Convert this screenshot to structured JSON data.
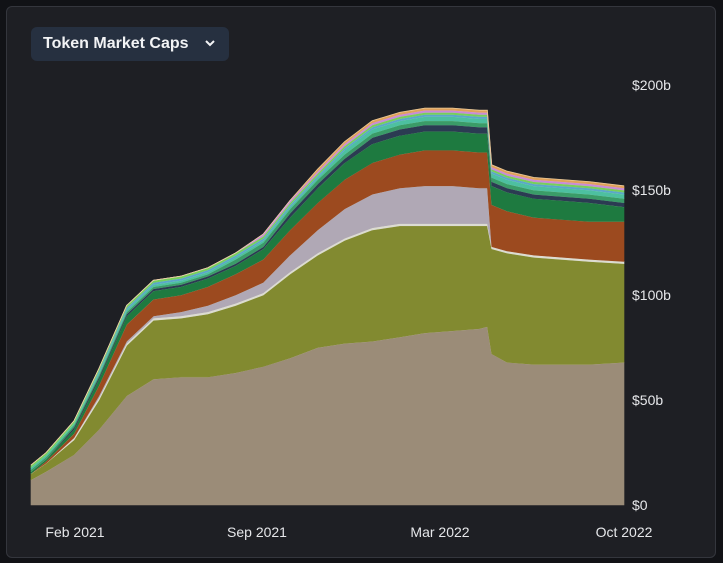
{
  "selector": {
    "label": "Token Market Caps",
    "icon": "chevron-down-icon"
  },
  "chart_data": {
    "type": "area",
    "stacked": true,
    "x": [
      "2020-12-15",
      "2021-01-01",
      "2021-02-01",
      "2021-03-01",
      "2021-04-01",
      "2021-05-01",
      "2021-06-01",
      "2021-07-01",
      "2021-08-01",
      "2021-09-01",
      "2021-10-01",
      "2021-11-01",
      "2021-12-01",
      "2022-01-01",
      "2022-02-01",
      "2022-03-01",
      "2022-04-01",
      "2022-05-01",
      "2022-05-10",
      "2022-05-15",
      "2022-06-01",
      "2022-07-01",
      "2022-08-01",
      "2022-09-01",
      "2022-10-10"
    ],
    "x_ticks": [
      "Feb 2021",
      "Sep 2021",
      "Mar 2022",
      "Oct 2022"
    ],
    "y_ticks": [
      "$0",
      "$50b",
      "$100b",
      "$150b",
      "$200b"
    ],
    "ylim": [
      0,
      200
    ],
    "y_unit": "b",
    "grid": false,
    "legend": "none",
    "series": [
      {
        "color": "#9b8c78",
        "values": [
          12,
          16,
          24,
          36,
          52,
          60,
          61,
          61,
          63,
          66,
          70,
          75,
          77,
          78,
          80,
          82,
          83,
          84,
          85,
          72,
          68,
          67,
          67,
          67,
          68
        ]
      },
      {
        "color": "#828a30",
        "values": [
          3,
          4,
          7,
          14,
          24,
          28,
          28,
          30,
          32,
          34,
          40,
          44,
          49,
          53,
          53,
          51,
          50,
          49,
          48,
          50,
          52,
          51,
          50,
          49,
          47
        ]
      },
      {
        "color": "#dcdcd2",
        "values": [
          0,
          0,
          1,
          1,
          1,
          1,
          1,
          1,
          1,
          1,
          1,
          1,
          1,
          1,
          1,
          1,
          1,
          1,
          1,
          1,
          1,
          1,
          1,
          1,
          1
        ]
      },
      {
        "color": "#b0a8b5",
        "values": [
          0,
          0,
          0,
          1,
          1,
          1,
          2,
          3,
          4,
          5,
          8,
          11,
          14,
          16,
          17,
          18,
          18,
          17,
          17,
          0,
          0,
          0,
          0,
          0,
          0
        ]
      },
      {
        "color": "#9c4a1f",
        "values": [
          0,
          1,
          2,
          5,
          8,
          8,
          8,
          9,
          10,
          11,
          12,
          13,
          14,
          15,
          16,
          17,
          17,
          17,
          17,
          20,
          19,
          18,
          18,
          18,
          19
        ]
      },
      {
        "color": "#1e7a40",
        "values": [
          1,
          1,
          2,
          3,
          4,
          4,
          4,
          4,
          4,
          5,
          6,
          7,
          8,
          9,
          9,
          9,
          9,
          9,
          9,
          9,
          9,
          9,
          9,
          9,
          7
        ]
      },
      {
        "color": "#2b3b52",
        "values": [
          0,
          0,
          1,
          1,
          1,
          1,
          1,
          1,
          1,
          1,
          2,
          2,
          2,
          3,
          3,
          3,
          3,
          3,
          3,
          2,
          2,
          2,
          2,
          2,
          2
        ]
      },
      {
        "color": "#3a9c68",
        "values": [
          1,
          1,
          1,
          1,
          1,
          1,
          1,
          1,
          2,
          2,
          2,
          2,
          2,
          2,
          2,
          2,
          2,
          2,
          2,
          2,
          2,
          2,
          2,
          2,
          2
        ]
      },
      {
        "color": "#4dc0a0",
        "values": [
          1,
          1,
          1,
          1,
          1,
          1,
          1,
          1,
          1,
          1,
          1,
          1,
          2,
          2,
          2,
          2,
          2,
          2,
          2,
          2,
          2,
          2,
          2,
          2,
          2
        ]
      },
      {
        "color": "#5ba7c9",
        "values": [
          0,
          0,
          0,
          1,
          1,
          1,
          1,
          1,
          1,
          1,
          1,
          1,
          1,
          1,
          1,
          1,
          1,
          1,
          1,
          1,
          1,
          1,
          1,
          1,
          1
        ]
      },
      {
        "color": "#76cf5a",
        "values": [
          1,
          1,
          1,
          1,
          1,
          1,
          1,
          1,
          1,
          1,
          1,
          1,
          1,
          1,
          1,
          1,
          1,
          1,
          1,
          1,
          1,
          1,
          1,
          1,
          1
        ]
      },
      {
        "color": "#c98ad8",
        "values": [
          0,
          0,
          0,
          0,
          0,
          0,
          0,
          0,
          0,
          1,
          1,
          1,
          1,
          1,
          1,
          1,
          1,
          1,
          1,
          1,
          1,
          1,
          1,
          1,
          1
        ]
      },
      {
        "color": "#e0a15a",
        "values": [
          0,
          0,
          0,
          0,
          0,
          0,
          0,
          0,
          0,
          0,
          0,
          1,
          1,
          1,
          1,
          1,
          1,
          1,
          1,
          1,
          1,
          1,
          1,
          1,
          1
        ]
      }
    ]
  }
}
